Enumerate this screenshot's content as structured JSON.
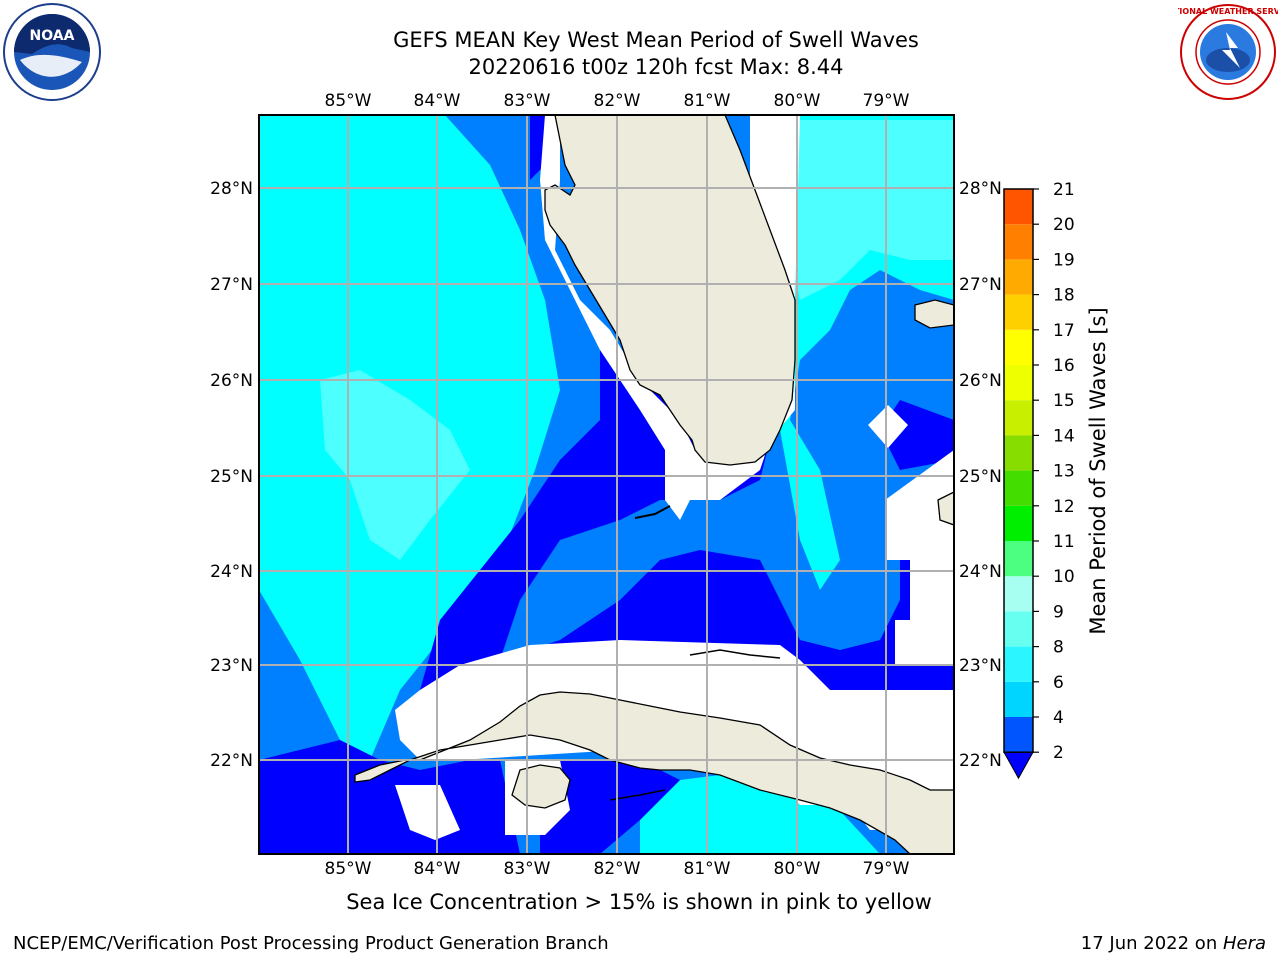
{
  "header": {
    "title_line1": "GEFS MEAN Key West Mean Period of Swell Waves",
    "title_line2": "20220616 t00z 120h fcst   Max: 8.44"
  },
  "map": {
    "lon_labels": [
      "85°W",
      "84°W",
      "83°W",
      "82°W",
      "81°W",
      "80°W",
      "79°W"
    ],
    "lat_labels": [
      "28°N",
      "27°N",
      "26°N",
      "25°N",
      "24°N",
      "23°N",
      "22°N"
    ],
    "colors": {
      "land": "#ecebdc",
      "ocean_2_4": "#0000ff",
      "ocean_4_6": "#0080ff",
      "ocean_6_8": "#00ffff",
      "ocean_8_9": "#4dffff",
      "no_data": "#ffffff",
      "grid": "#b0b0b0"
    }
  },
  "colorbar": {
    "label": "Mean Period of Swell Waves [s]",
    "ticks": [
      "2",
      "4",
      "6",
      "8",
      "9",
      "10",
      "11",
      "12",
      "13",
      "14",
      "15",
      "16",
      "17",
      "18",
      "19",
      "20",
      "21"
    ],
    "colors": [
      "#0055ff",
      "#00d5ff",
      "#2bf6ff",
      "#66fff0",
      "#a6fff0",
      "#4dff80",
      "#00ee00",
      "#44dd00",
      "#88dd00",
      "#c8ee00",
      "#eeff00",
      "#ffff00",
      "#ffd000",
      "#ffaa00",
      "#ff8000",
      "#ff5500",
      "#ff2a00",
      "#ff0000"
    ],
    "extend_color": "#0000ff"
  },
  "footer": {
    "note": "Sea Ice Concentration > 15% is shown in pink to yellow",
    "org": "NCEP/EMC/Verification Post Processing Product Generation Branch",
    "date": "17 Jun 2022 on ",
    "machine": "Hera"
  },
  "logos": {
    "left": "NOAA",
    "right": "NATIONAL WEATHER SERVICE"
  }
}
